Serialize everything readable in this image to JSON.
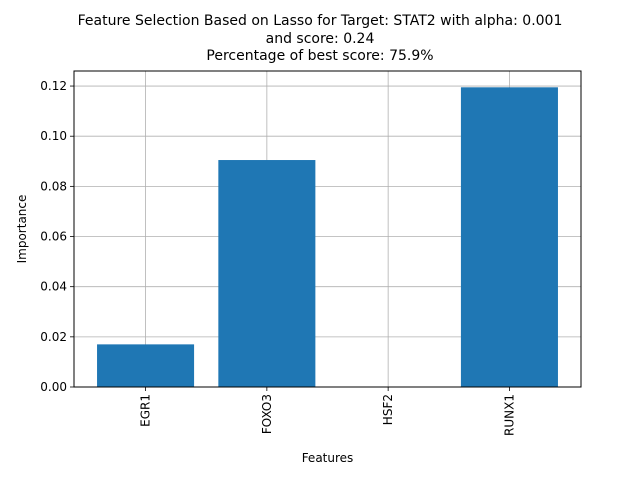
{
  "chart_data": {
    "type": "bar",
    "title_lines": [
      "Feature Selection Based on Lasso for Target: STAT2 with alpha: 0.001",
      "and score: 0.24",
      "Percentage of best score: 75.9%"
    ],
    "xlabel": "Features",
    "ylabel": "Importance",
    "categories": [
      "EGR1",
      "FOXO3",
      "HSF2",
      "RUNX1"
    ],
    "values": [
      0.017,
      0.0905,
      0.0,
      0.1195
    ],
    "ylim": [
      0,
      0.126
    ],
    "yticks": [
      0.0,
      0.02,
      0.04,
      0.06,
      0.08,
      0.1,
      0.12
    ],
    "ytick_labels": [
      "0.00",
      "0.02",
      "0.04",
      "0.06",
      "0.08",
      "0.10",
      "0.12"
    ],
    "grid": true,
    "bar_color": "#1f77b4",
    "grid_color": "#b0b0b0",
    "xtick_rotation": "vertical"
  }
}
